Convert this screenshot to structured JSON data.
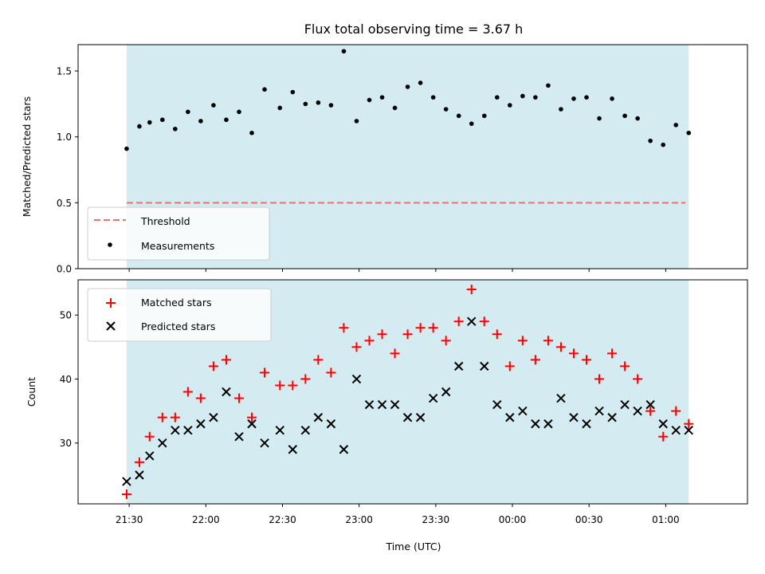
{
  "chart_data": [
    {
      "type": "scatter",
      "title": "Flux total observing time = 3.67 h",
      "xlabel": "",
      "ylabel": "Matched/Predicted stars",
      "ylim": [
        0,
        1.7
      ],
      "yticks": [
        0.0,
        0.5,
        1.0,
        1.5
      ],
      "ytick_labels": [
        "0.0",
        "0.5",
        "1.0",
        "1.5"
      ],
      "observing_window": [
        "21:29",
        "01:09"
      ],
      "threshold": 0.5,
      "legend": {
        "placement": "lower-left",
        "items": [
          "Threshold",
          "Measurements"
        ]
      },
      "colors": {
        "background": "#d4ebf1",
        "threshold": "#f07070",
        "points": "#000000"
      },
      "series": [
        {
          "name": "Measurements",
          "x": [
            "21:29",
            "21:34",
            "21:38",
            "21:43",
            "21:48",
            "21:53",
            "21:58",
            "22:03",
            "22:08",
            "22:13",
            "22:18",
            "22:23",
            "22:29",
            "22:34",
            "22:39",
            "22:44",
            "22:49",
            "22:54",
            "22:59",
            "23:04",
            "23:09",
            "23:14",
            "23:19",
            "23:24",
            "23:29",
            "23:34",
            "23:39",
            "23:44",
            "23:49",
            "23:54",
            "23:59",
            "00:04",
            "00:09",
            "00:14",
            "00:19",
            "00:24",
            "00:29",
            "00:34",
            "00:39",
            "00:44",
            "00:49",
            "00:54",
            "00:59",
            "01:04",
            "01:09"
          ],
          "values": [
            0.91,
            1.08,
            1.11,
            1.13,
            1.06,
            1.19,
            1.12,
            1.24,
            1.13,
            1.19,
            1.03,
            1.36,
            1.22,
            1.34,
            1.25,
            1.26,
            1.24,
            1.65,
            1.12,
            1.28,
            1.3,
            1.22,
            1.38,
            1.41,
            1.3,
            1.21,
            1.16,
            1.1,
            1.16,
            1.3,
            1.24,
            1.31,
            1.3,
            1.39,
            1.21,
            1.29,
            1.3,
            1.14,
            1.29,
            1.16,
            1.14,
            0.97,
            0.94,
            1.09,
            1.03
          ]
        }
      ]
    },
    {
      "type": "scatter",
      "title": "",
      "xlabel": "Time (UTC)",
      "ylabel": "Count",
      "ylim": [
        20.5,
        55.5
      ],
      "yticks": [
        30,
        40,
        50
      ],
      "ytick_labels": [
        "30",
        "40",
        "50"
      ],
      "categories": [
        "21:30",
        "22:00",
        "22:30",
        "23:00",
        "23:30",
        "00:00",
        "00:30",
        "01:00"
      ],
      "observing_window": [
        "21:29",
        "01:09"
      ],
      "legend": {
        "placement": "top-left",
        "items": [
          "Matched stars",
          "Predicted stars"
        ]
      },
      "colors": {
        "background": "#d4ebf1",
        "matched": "#ff0000",
        "predicted": "#000000"
      },
      "x": [
        "21:29",
        "21:34",
        "21:38",
        "21:43",
        "21:48",
        "21:53",
        "21:58",
        "22:03",
        "22:08",
        "22:13",
        "22:18",
        "22:23",
        "22:29",
        "22:34",
        "22:39",
        "22:44",
        "22:49",
        "22:54",
        "22:59",
        "23:04",
        "23:09",
        "23:14",
        "23:19",
        "23:24",
        "23:29",
        "23:34",
        "23:39",
        "23:44",
        "23:49",
        "23:54",
        "23:59",
        "00:04",
        "00:09",
        "00:14",
        "00:19",
        "00:24",
        "00:29",
        "00:34",
        "00:39",
        "00:44",
        "00:49",
        "00:54",
        "00:59",
        "01:04",
        "01:09"
      ],
      "series": [
        {
          "name": "Matched stars",
          "marker": "plus",
          "values": [
            22,
            27,
            31,
            34,
            34,
            38,
            37,
            42,
            43,
            37,
            34,
            41,
            39,
            39,
            40,
            43,
            41,
            48,
            45,
            46,
            47,
            44,
            47,
            48,
            48,
            46,
            49,
            54,
            49,
            47,
            42,
            46,
            43,
            46,
            45,
            44,
            43,
            40,
            44,
            42,
            40,
            35,
            31,
            35,
            33
          ]
        },
        {
          "name": "Predicted stars",
          "marker": "x",
          "values": [
            24,
            25,
            28,
            30,
            32,
            32,
            33,
            34,
            38,
            31,
            33,
            30,
            32,
            29,
            32,
            34,
            33,
            29,
            40,
            36,
            36,
            36,
            34,
            34,
            37,
            38,
            42,
            49,
            42,
            36,
            34,
            35,
            33,
            33,
            37,
            34,
            33,
            35,
            34,
            36,
            35,
            36,
            33,
            32,
            32
          ]
        }
      ]
    }
  ]
}
